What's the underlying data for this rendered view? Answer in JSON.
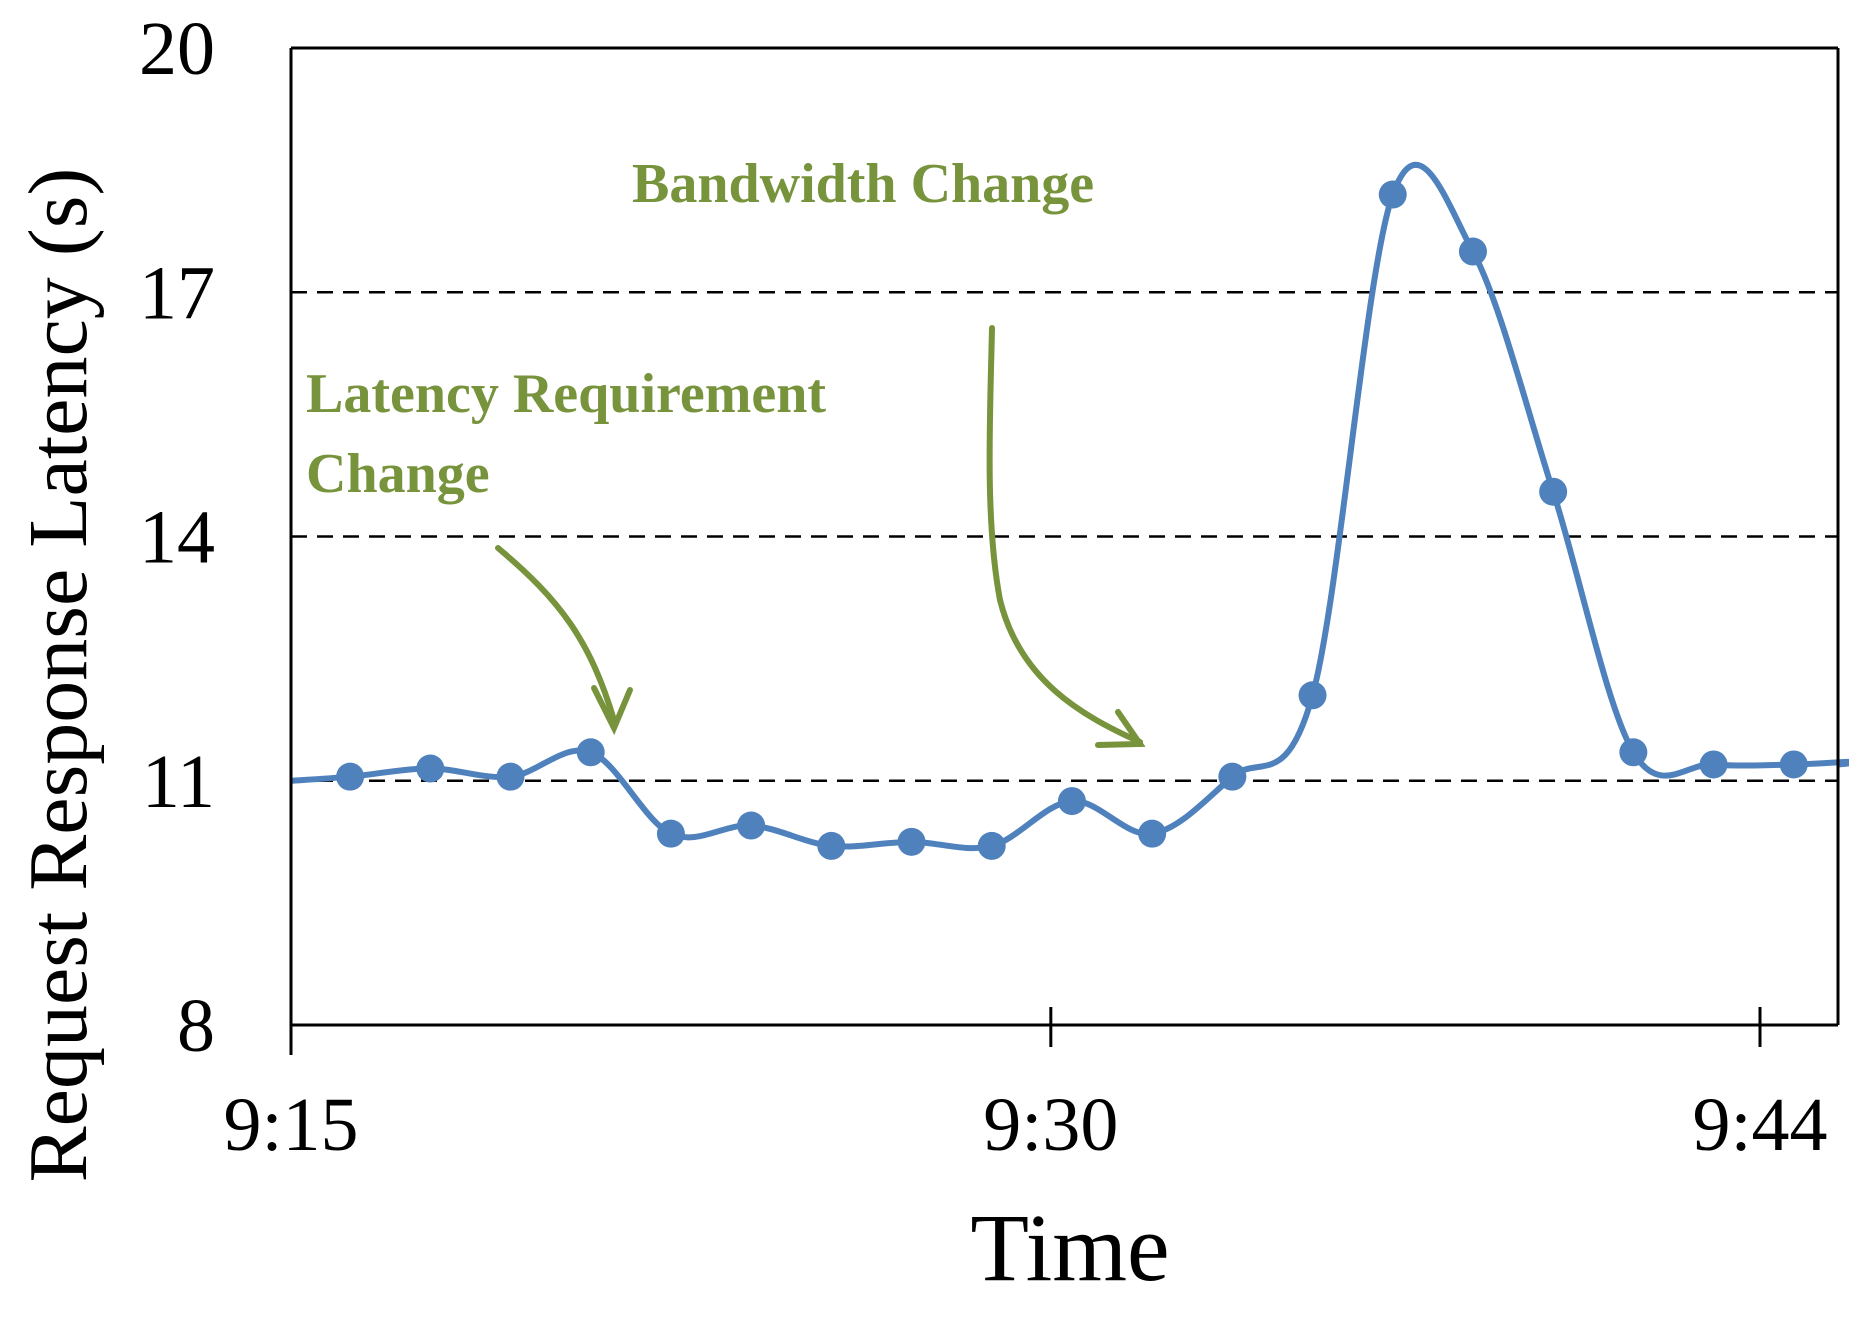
{
  "chart_data": {
    "type": "line",
    "title": "",
    "xlabel": "Time",
    "ylabel": "Request Response Latency (s)",
    "ylim": [
      8,
      20
    ],
    "yticks": [
      "20",
      "17",
      "14",
      "11",
      "8"
    ],
    "ytick_values": [
      20,
      17,
      14,
      11,
      8
    ],
    "xlim": [
      "9:15",
      "9:46"
    ],
    "xticks": [
      "9:15",
      "9:30",
      "9:44"
    ],
    "grid": "dashed horizontal lines at 11, 14, 17",
    "legend": "none",
    "series": [
      {
        "color": "#4f81bd",
        "marker": "circle",
        "smooth": true,
        "points": [
          {
            "x": "9:16:10",
            "y": 11.05
          },
          {
            "x": "9:17:45",
            "y": 11.15
          },
          {
            "x": "9:19:20",
            "y": 11.05
          },
          {
            "x": "9:20:55",
            "y": 11.35
          },
          {
            "x": "9:22:30",
            "y": 10.35
          },
          {
            "x": "9:24:05",
            "y": 10.45
          },
          {
            "x": "9:25:40",
            "y": 10.2
          },
          {
            "x": "9:27:15",
            "y": 10.25
          },
          {
            "x": "9:28:50",
            "y": 10.2
          },
          {
            "x": "9:30:25",
            "y": 10.75
          },
          {
            "x": "9:32:00",
            "y": 10.35
          },
          {
            "x": "9:33:35",
            "y": 11.05
          },
          {
            "x": "9:35:10",
            "y": 12.05
          },
          {
            "x": "9:36:45",
            "y": 18.2
          },
          {
            "x": "9:38:20",
            "y": 17.5
          },
          {
            "x": "9:39:55",
            "y": 14.55
          },
          {
            "x": "9:41:30",
            "y": 11.35
          },
          {
            "x": "9:43:05",
            "y": 11.2
          },
          {
            "x": "9:44:40",
            "y": 11.2
          },
          {
            "x": "9:46:15",
            "y": 11.25
          }
        ],
        "start_y": 11.0,
        "end_y": 11.2
      }
    ],
    "annotations": [
      {
        "id": "latency",
        "lines": [
          "Latency Requirement",
          "Change"
        ],
        "color": "#77933c"
      },
      {
        "id": "bandwidth",
        "lines": [
          "Bandwidth Change"
        ],
        "color": "#77933c"
      }
    ]
  }
}
